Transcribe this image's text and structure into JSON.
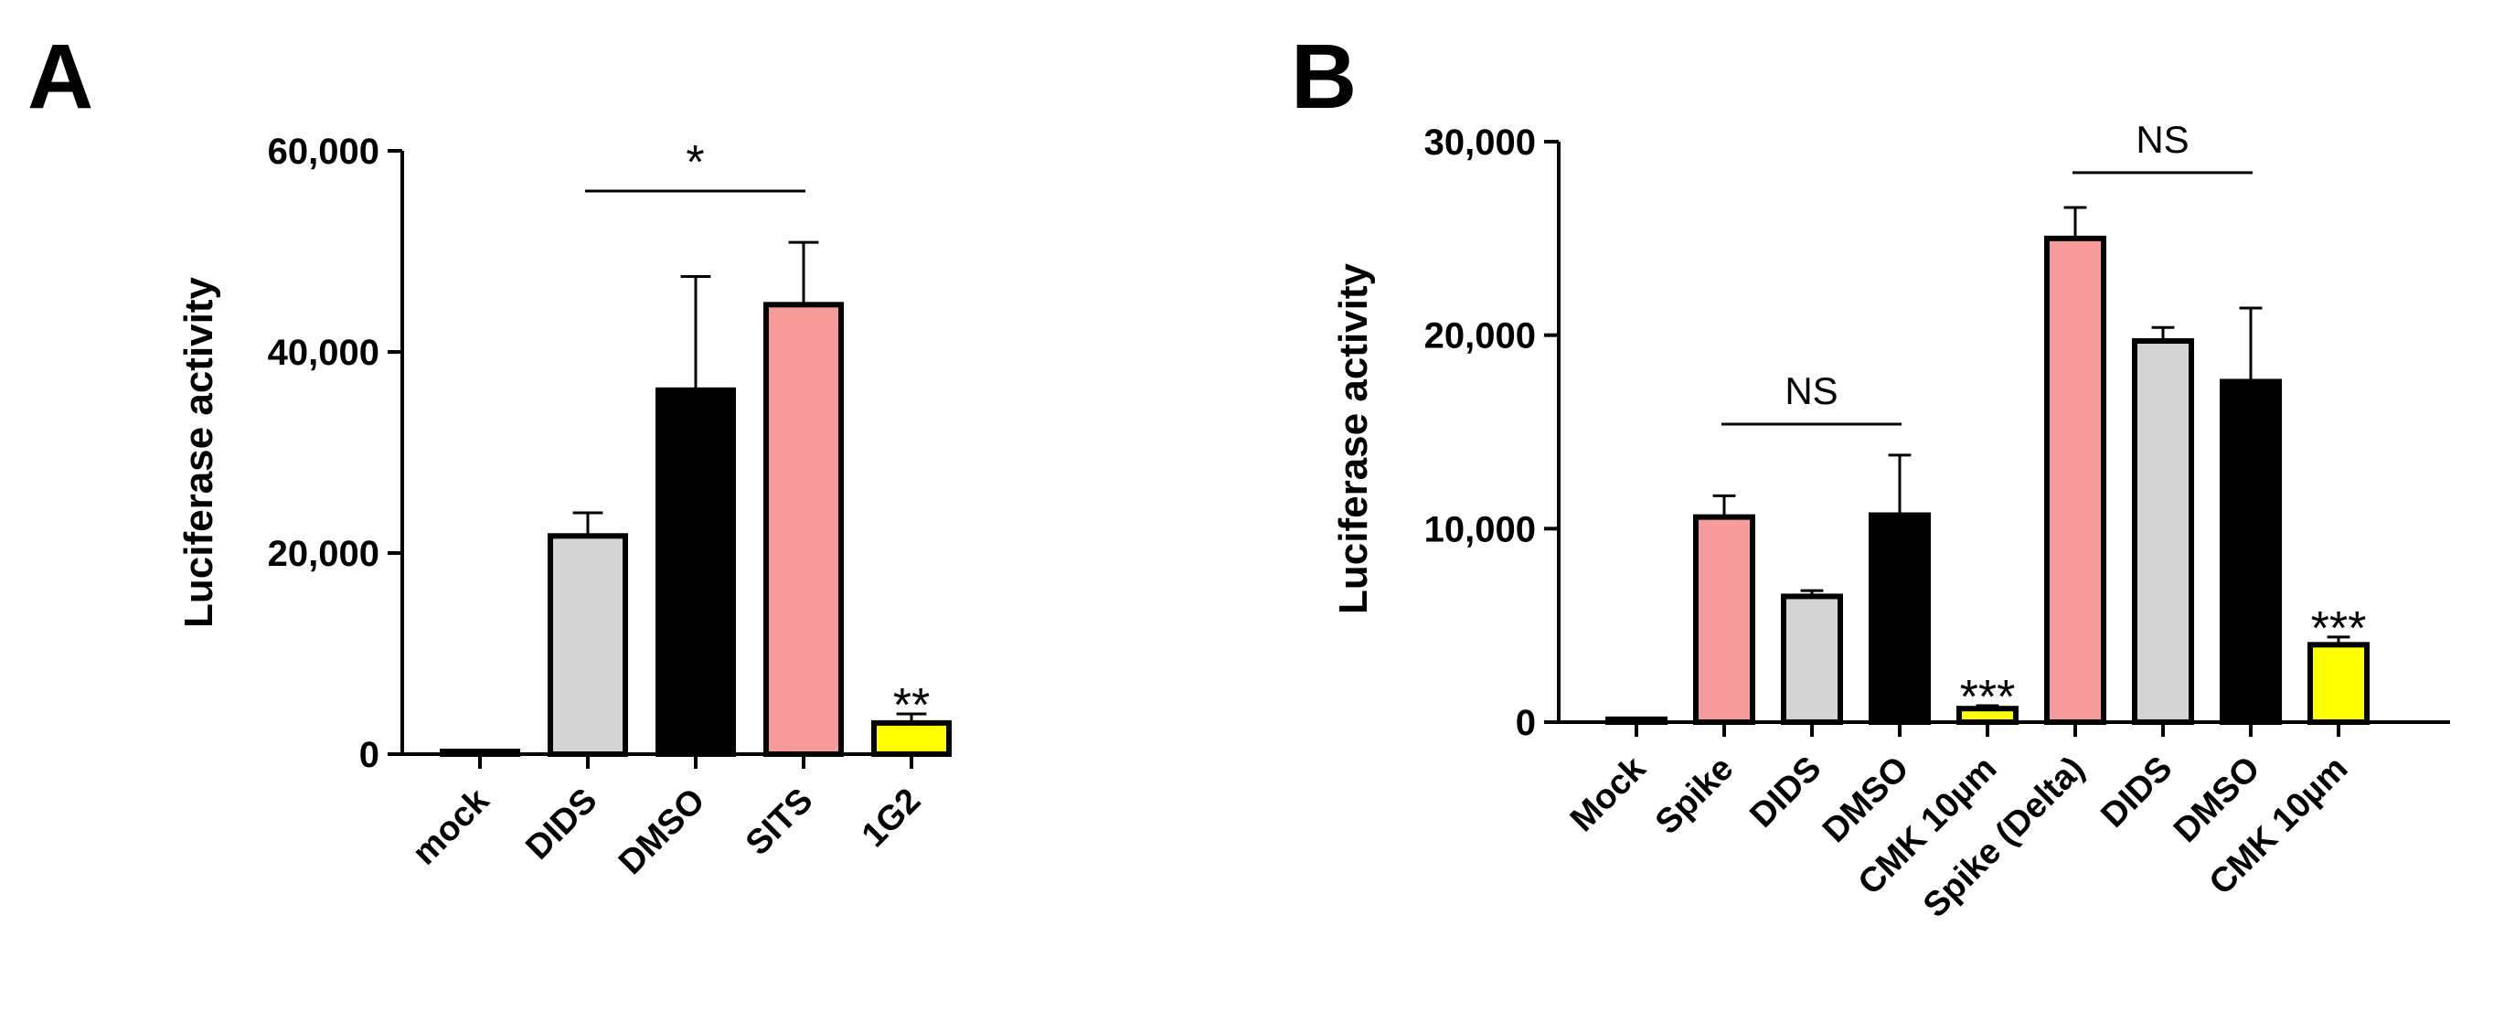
{
  "chart_data": [
    {
      "panel": "A",
      "type": "bar",
      "ylabel": "Luciferase activity",
      "ylim": [
        0,
        60000
      ],
      "yticks": [
        0,
        20000,
        40000,
        60000
      ],
      "ytick_labels": [
        "0",
        "20,000",
        "40,000",
        "60,000"
      ],
      "categories": [
        "mock",
        "DIDS",
        "DMSO",
        "SITS",
        "1G2"
      ],
      "values": [
        200,
        21700,
        36200,
        44700,
        3100
      ],
      "errors": [
        0,
        2300,
        11300,
        6200,
        900
      ],
      "colors": [
        "#ffffff",
        "#d4d4d4",
        "#000000",
        "#f79a9a",
        "#ffff00"
      ],
      "annotations": [
        {
          "text": "*",
          "type": "bracket",
          "from": 1,
          "to": 3,
          "y": 56000
        },
        {
          "text": "**",
          "type": "above",
          "index": 4
        }
      ]
    },
    {
      "panel": "B",
      "type": "bar",
      "ylabel": "Luciferase activity",
      "ylim": [
        0,
        30000
      ],
      "yticks": [
        0,
        10000,
        20000,
        30000
      ],
      "ytick_labels": [
        "0",
        "10,000",
        "20,000",
        "30,000"
      ],
      "categories": [
        "Mock",
        "Spike",
        "DIDS",
        "DMSO",
        "CMK 10µm",
        "Spike (Delta)",
        "DIDS",
        "DMSO",
        "CMK 10µm"
      ],
      "values": [
        150,
        10600,
        6500,
        10700,
        700,
        25000,
        19700,
        17600,
        4000
      ],
      "errors": [
        0,
        1100,
        300,
        3100,
        150,
        1600,
        700,
        3800,
        400
      ],
      "colors": [
        "#ffffff",
        "#f79a9a",
        "#d4d4d4",
        "#000000",
        "#ffff00",
        "#f79a9a",
        "#d4d4d4",
        "#000000",
        "#ffff00"
      ],
      "annotations": [
        {
          "text": "NS",
          "type": "bracket",
          "from": 1,
          "to": 3,
          "y": 15400
        },
        {
          "text": "NS",
          "type": "bracket",
          "from": 5,
          "to": 7,
          "y": 28400
        },
        {
          "text": "***",
          "type": "above",
          "index": 4
        },
        {
          "text": "***",
          "type": "above",
          "index": 8
        }
      ]
    }
  ]
}
